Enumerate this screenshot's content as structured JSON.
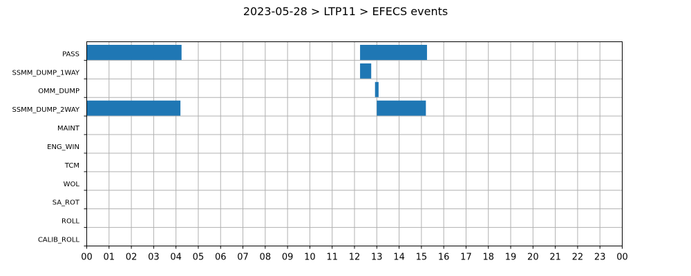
{
  "colors": {
    "bar": "#1f77b4",
    "grid": "#b0b0b0"
  },
  "chart_data": {
    "type": "bar",
    "orientation": "horizontal-timeline",
    "title": "2023-05-28 > LTP11 > EFECS events",
    "xlabel": "",
    "ylabel": "",
    "x_ticks": [
      "00",
      "01",
      "02",
      "03",
      "04",
      "05",
      "06",
      "07",
      "08",
      "09",
      "10",
      "11",
      "12",
      "13",
      "14",
      "15",
      "16",
      "17",
      "18",
      "19",
      "20",
      "21",
      "22",
      "23",
      "00"
    ],
    "xlim_hours": [
      0,
      24
    ],
    "grid": true,
    "categories": [
      "PASS",
      "SSMM_DUMP_1WAY",
      "OMM_DUMP",
      "SSMM_DUMP_2WAY",
      "MAINT",
      "ENG_WIN",
      "TCM",
      "WOL",
      "SA_ROT",
      "ROLL",
      "CALIB_ROLL"
    ],
    "events": [
      {
        "category": "PASS",
        "start_hour": 0.0,
        "end_hour": 4.25
      },
      {
        "category": "PASS",
        "start_hour": 12.25,
        "end_hour": 15.25
      },
      {
        "category": "SSMM_DUMP_1WAY",
        "start_hour": 12.25,
        "end_hour": 12.75
      },
      {
        "category": "OMM_DUMP",
        "start_hour": 12.92,
        "end_hour": 13.08
      },
      {
        "category": "SSMM_DUMP_2WAY",
        "start_hour": 0.0,
        "end_hour": 4.2
      },
      {
        "category": "SSMM_DUMP_2WAY",
        "start_hour": 13.0,
        "end_hour": 15.2
      }
    ]
  }
}
